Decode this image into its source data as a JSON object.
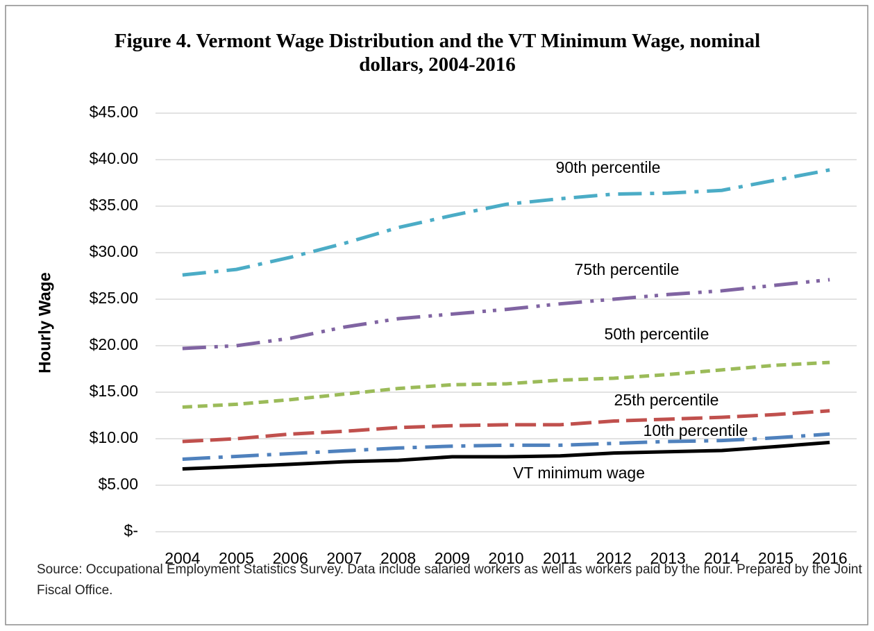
{
  "chart_data": {
    "type": "line",
    "title": "Figure 4. Vermont Wage Distribution and the VT Minimum Wage, nominal dollars, 2004-2016",
    "y_label": "Hourly Wage",
    "source": "Source: Occupational Employment Statistics Survey. Data include salaried workers as well as workers paid by the hour. Prepared by the Joint Fiscal Office.",
    "categories": [
      "2004",
      "2005",
      "2006",
      "2007",
      "2008",
      "2009",
      "2010",
      "2011",
      "2012",
      "2013",
      "2014",
      "2015",
      "2016"
    ],
    "ylim": [
      0,
      45
    ],
    "yticks": [
      {
        "value": 0,
        "label": "$-"
      },
      {
        "value": 5,
        "label": "$5.00"
      },
      {
        "value": 10,
        "label": "$10.00"
      },
      {
        "value": 15,
        "label": "$15.00"
      },
      {
        "value": 20,
        "label": "$20.00"
      },
      {
        "value": 25,
        "label": "$25.00"
      },
      {
        "value": 30,
        "label": "$30.00"
      },
      {
        "value": 35,
        "label": "$35.00"
      },
      {
        "value": 40,
        "label": "$40.00"
      },
      {
        "value": 45,
        "label": "$45.00"
      }
    ],
    "grid": true,
    "series": [
      {
        "name": "90th percentile",
        "color": "#4bacc6",
        "dash": "34 12 6 12",
        "values": [
          27.6,
          28.2,
          29.5,
          31.0,
          32.7,
          34.0,
          35.2,
          35.8,
          36.3,
          36.4,
          36.7,
          37.8,
          38.9
        ]
      },
      {
        "name": "75th percentile",
        "color": "#8064a2",
        "dash": "34 12 5 10 5 12",
        "values": [
          19.7,
          20.0,
          20.8,
          22.0,
          22.9,
          23.4,
          23.9,
          24.5,
          25.0,
          25.5,
          25.9,
          26.5,
          27.1
        ]
      },
      {
        "name": "50th percentile",
        "color": "#9bbb59",
        "dash": "14 8",
        "values": [
          13.4,
          13.7,
          14.2,
          14.8,
          15.4,
          15.8,
          15.9,
          16.3,
          16.5,
          16.9,
          17.4,
          17.9,
          18.2
        ]
      },
      {
        "name": "25th percentile",
        "color": "#c0504d",
        "dash": "30 10",
        "values": [
          9.7,
          10.0,
          10.5,
          10.8,
          11.2,
          11.4,
          11.5,
          11.5,
          11.9,
          12.1,
          12.3,
          12.6,
          13.0
        ]
      },
      {
        "name": "10th percentile",
        "color": "#4f81bd",
        "dash": "40 12 6 12",
        "values": [
          7.8,
          8.1,
          8.4,
          8.7,
          9.0,
          9.2,
          9.3,
          9.3,
          9.5,
          9.7,
          9.8,
          10.1,
          10.5
        ]
      },
      {
        "name": "VT minimum  wage",
        "color": "#000000",
        "dash": "none",
        "values": [
          6.75,
          7.0,
          7.25,
          7.53,
          7.68,
          8.06,
          8.06,
          8.15,
          8.46,
          8.6,
          8.73,
          9.15,
          9.6
        ]
      }
    ]
  }
}
